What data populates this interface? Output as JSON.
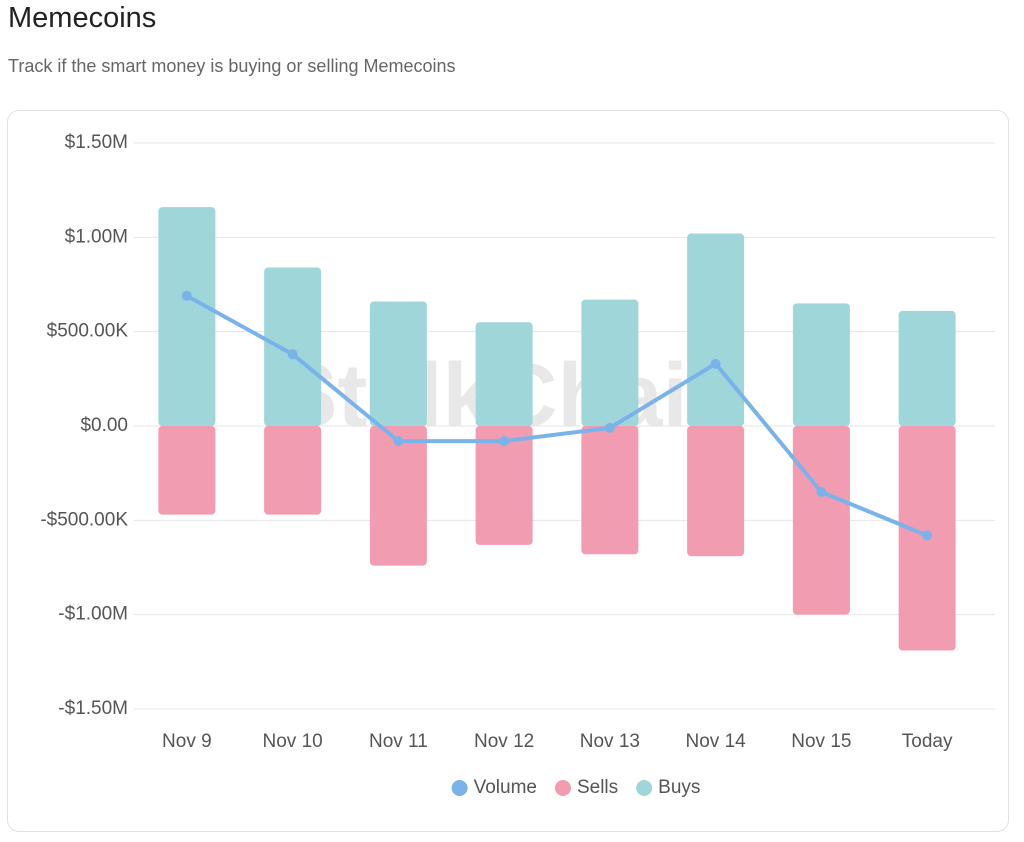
{
  "chart_data": {
    "type": "bar",
    "title": "Memecoins",
    "subtitle": "Track if the smart money is buying or selling Memecoins",
    "watermark": "StalkChain",
    "categories": [
      "Nov 9",
      "Nov 10",
      "Nov 11",
      "Nov 12",
      "Nov 13",
      "Nov 14",
      "Nov 15",
      "Today"
    ],
    "series": [
      {
        "name": "Volume",
        "type": "line",
        "color": "#7ab3ea",
        "values": [
          690000,
          380000,
          -80000,
          -80000,
          -10000,
          330000,
          -350000,
          -580000
        ]
      },
      {
        "name": "Sells",
        "type": "bar",
        "color": "#f19cb0",
        "values": [
          -470000,
          -470000,
          -740000,
          -630000,
          -680000,
          -690000,
          -1000000,
          -1190000
        ]
      },
      {
        "name": "Buys",
        "type": "bar",
        "color": "#9fd6d9",
        "values": [
          1160000,
          840000,
          660000,
          550000,
          670000,
          1020000,
          650000,
          610000
        ]
      }
    ],
    "ylim": [
      -1500000,
      1500000
    ],
    "yticks": [
      {
        "value": -1500000,
        "label": "-$1.50M"
      },
      {
        "value": -1000000,
        "label": "-$1.00M"
      },
      {
        "value": -500000,
        "label": "-$500.00K"
      },
      {
        "value": 0,
        "label": "$0.00"
      },
      {
        "value": 500000,
        "label": "$500.00K"
      },
      {
        "value": 1000000,
        "label": "$1.00M"
      },
      {
        "value": 1500000,
        "label": "$1.50M"
      }
    ],
    "grid": true,
    "legend": "bottom"
  }
}
